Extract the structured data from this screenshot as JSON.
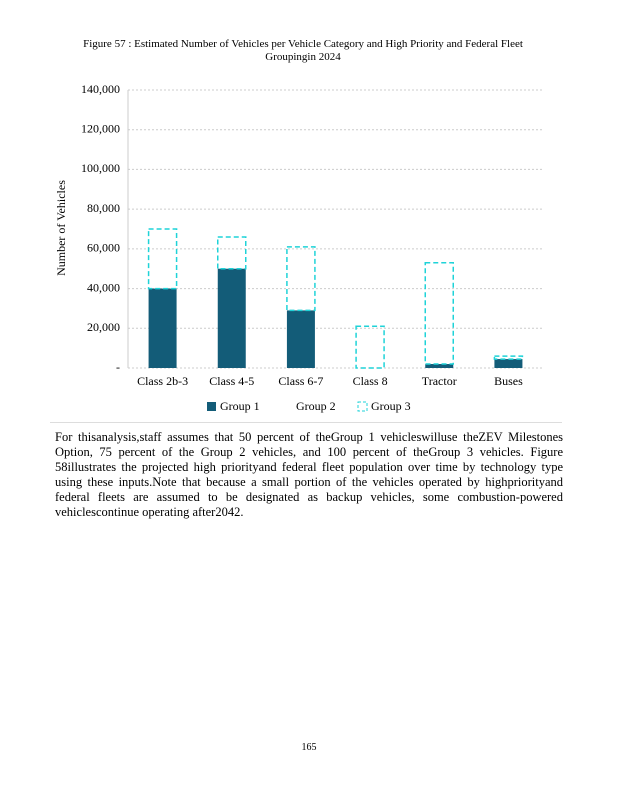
{
  "chart_data": {
    "type": "bar",
    "stacked": true,
    "title": "Figure 57 : Estimated Number of Vehicles per Vehicle Category and High Priority and Federal Fleet Groupingin 2024",
    "y_label": "Number of Vehicles",
    "categories": [
      "Class 2b-3",
      "Class 4-5",
      "Class 6-7",
      "Class 8",
      "Tractor",
      "Buses"
    ],
    "series": [
      {
        "name": "Group 1",
        "color": "#135c78",
        "values": [
          40000,
          50000,
          29000,
          0,
          2000,
          4500
        ]
      },
      {
        "name": "Group 2",
        "color": "#ffffff",
        "values": [
          0,
          0,
          0,
          0,
          0,
          0
        ]
      },
      {
        "name": "Group 3",
        "color": "#1fd3d8",
        "dashed": true,
        "values": [
          30000,
          16000,
          32000,
          21000,
          51000,
          1500
        ]
      }
    ],
    "ylim": [
      0,
      140000
    ],
    "yticks": [
      {
        "value": 0,
        "label": "-"
      },
      {
        "value": 20000,
        "label": "20,000"
      },
      {
        "value": 40000,
        "label": "40,000"
      },
      {
        "value": 60000,
        "label": "60,000"
      },
      {
        "value": 80000,
        "label": "80,000"
      },
      {
        "value": 100000,
        "label": "100,000"
      },
      {
        "value": 120000,
        "label": "120,000"
      },
      {
        "value": 140000,
        "label": "140,000"
      }
    ],
    "grid": true
  },
  "body": "For thisanalysis,staff assumes that 50 percent of theGroup 1 vehicleswilluse theZEV Milestones Option, 75 percent of the Group 2 vehicles, and 100 percent of theGroup 3 vehicles. Figure 58illustrates the projected high priorityand federal fleet population over time by technology type using these inputs.Note that because a small portion of the vehicles operated by highpriorityand federal fleets are assumed to be designated as backup vehicles, some combustion-powered vehiclescontinue operating after2042.",
  "page_number": "165"
}
